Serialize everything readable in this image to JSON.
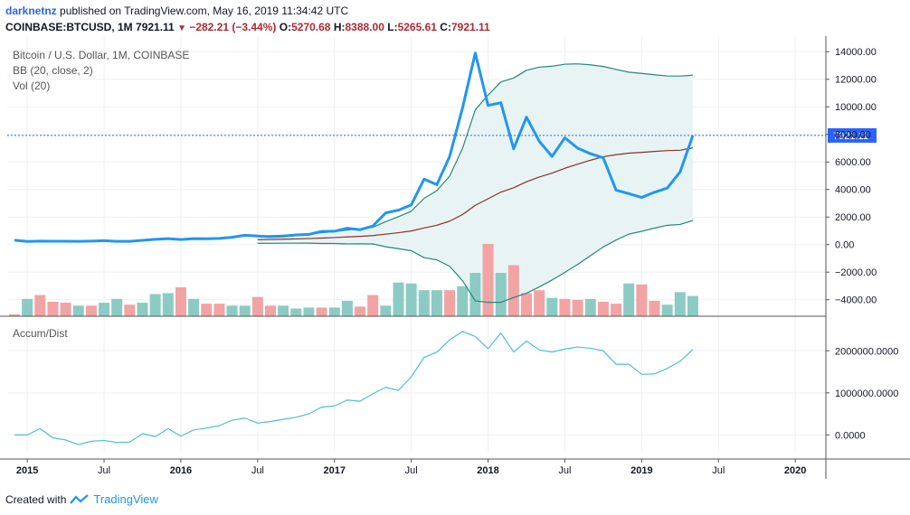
{
  "header": {
    "username": "darknetnz",
    "published_text": "published on TradingView.com, May 16, 2019 11:34:42 UTC",
    "symbol": "COINBASE:BTCUSD, 1M",
    "last": "7921.11",
    "change": "−282.21 (−3.44%)",
    "o_label": "O:",
    "o_value": "5270.68",
    "h_label": "H:",
    "h_value": "8388.00",
    "l_label": "L:",
    "l_value": "5265.61",
    "c_label": "C:",
    "c_value": "7921.11"
  },
  "legend": {
    "title": "Bitcoin / U.S. Dollar, 1M, COINBASE",
    "bb": "BB (20, close, 2)",
    "vol": "Vol (20)",
    "accum": "Accum/Dist"
  },
  "footer": {
    "created_with": "Created with",
    "brand": "TradingView"
  },
  "colors": {
    "price": "#2196f3",
    "bb_band": "#26877a",
    "bb_basis": "#8b2f2f",
    "bb_fill": "#e8f4f3",
    "vol_up": "#8ccbc3",
    "vol_down": "#f2a3a3",
    "ad_line": "#4cc0d6",
    "last_price": "#2962ff"
  },
  "chart_data": [
    {
      "type": "line",
      "title": "Bitcoin / U.S. Dollar, 1M, COINBASE",
      "x": [
        "2014-12",
        "2015-01",
        "2015-02",
        "2015-03",
        "2015-04",
        "2015-05",
        "2015-06",
        "2015-07",
        "2015-08",
        "2015-09",
        "2015-10",
        "2015-11",
        "2015-12",
        "2016-01",
        "2016-02",
        "2016-03",
        "2016-04",
        "2016-05",
        "2016-06",
        "2016-07",
        "2016-08",
        "2016-09",
        "2016-10",
        "2016-11",
        "2016-12",
        "2017-01",
        "2017-02",
        "2017-03",
        "2017-04",
        "2017-05",
        "2017-06",
        "2017-07",
        "2017-08",
        "2017-09",
        "2017-10",
        "2017-11",
        "2017-12",
        "2018-01",
        "2018-02",
        "2018-03",
        "2018-04",
        "2018-05",
        "2018-06",
        "2018-07",
        "2018-08",
        "2018-09",
        "2018-10",
        "2018-11",
        "2018-12",
        "2019-01",
        "2019-02",
        "2019-03",
        "2019-04",
        "2019-05"
      ],
      "series": [
        {
          "values": [
            320,
            230,
            250,
            245,
            240,
            235,
            255,
            285,
            235,
            235,
            310,
            380,
            430,
            370,
            430,
            420,
            450,
            530,
            680,
            620,
            575,
            610,
            700,
            740,
            960,
            970,
            1190,
            1080,
            1350,
            2300,
            2500,
            2880,
            4750,
            4350,
            6400,
            9900,
            13900,
            10100,
            10300,
            6950,
            9250,
            7500,
            6400,
            7750,
            7000,
            6600,
            6300,
            3950,
            3700,
            3420,
            3800,
            4100,
            5270,
            7921
          ]
        }
      ],
      "bb_start": "2016-07",
      "y_axis_ticks": [
        "14000.00",
        "12000.00",
        "10000.00",
        "8000.00",
        "6000.00",
        "4000.00",
        "2000.00",
        "0.00",
        "−2000.00",
        "−4000.00"
      ],
      "ylim": [
        -5200,
        15000
      ],
      "last_price_label": "7921.11"
    },
    {
      "type": "bar",
      "title": "Vol (20)",
      "direction": [
        "down",
        "up",
        "down",
        "down",
        "down",
        "up",
        "down",
        "up",
        "up",
        "down",
        "up",
        "up",
        "up",
        "down",
        "up",
        "down",
        "down",
        "up",
        "up",
        "down",
        "down",
        "up",
        "up",
        "up",
        "down",
        "up",
        "up",
        "down",
        "down",
        "up",
        "up",
        "up",
        "up",
        "up",
        "down",
        "up",
        "up",
        "down",
        "up",
        "down",
        "down",
        "down",
        "up",
        "down",
        "down",
        "up",
        "down",
        "down",
        "up",
        "down",
        "down",
        "up",
        "up",
        "up"
      ],
      "values": [
        2,
        18,
        22,
        15,
        14,
        11,
        11,
        14,
        18,
        12,
        14,
        23,
        24,
        30,
        18,
        13,
        13,
        11,
        11,
        20,
        11,
        11,
        8,
        9,
        9,
        9,
        16,
        10,
        22,
        11,
        35,
        34,
        27,
        27,
        27,
        31,
        45,
        75,
        45,
        53,
        24,
        27,
        19,
        18,
        17,
        18,
        15,
        13,
        34,
        33,
        16,
        12,
        25,
        21
      ]
    },
    {
      "type": "line",
      "title": "Accum/Dist",
      "y_axis_ticks": [
        "2000000.0000",
        "1000000.0000",
        "0.0000"
      ],
      "ylim": [
        -400000,
        2800000
      ],
      "values": [
        0,
        0,
        150000,
        -70000,
        -120000,
        -230000,
        -150000,
        -130000,
        -180000,
        -170000,
        30000,
        -40000,
        150000,
        -30000,
        120000,
        160000,
        220000,
        350000,
        400000,
        280000,
        320000,
        370000,
        420000,
        500000,
        660000,
        690000,
        830000,
        800000,
        980000,
        1130000,
        1060000,
        1380000,
        1840000,
        1970000,
        2260000,
        2460000,
        2340000,
        2050000,
        2420000,
        1970000,
        2230000,
        2020000,
        1970000,
        2040000,
        2090000,
        2060000,
        2000000,
        1680000,
        1680000,
        1440000,
        1450000,
        1580000,
        1750000,
        2030000
      ]
    },
    {
      "type": "table",
      "title": "time axis",
      "x_tick_labels": [
        "2015",
        "Jul",
        "2016",
        "Jul",
        "2017",
        "Jul",
        "2018",
        "Jul",
        "2019",
        "Jul",
        "2020"
      ],
      "x_tick_dates": [
        "2015-01",
        "2015-07",
        "2016-01",
        "2016-07",
        "2017-01",
        "2017-07",
        "2018-01",
        "2018-07",
        "2019-01",
        "2019-07",
        "2020-01"
      ]
    }
  ]
}
